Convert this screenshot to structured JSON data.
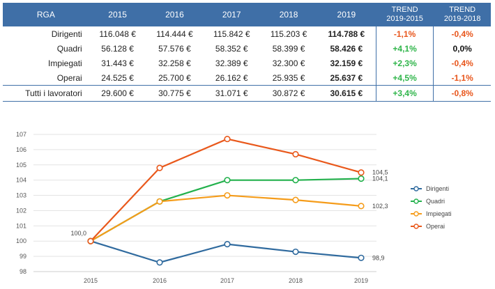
{
  "table": {
    "headers": [
      "RGA",
      "2015",
      "2016",
      "2017",
      "2018",
      "2019",
      "TREND\n2019-2015",
      "TREND\n2019-2018"
    ],
    "rows": [
      {
        "label": "Dirigenti",
        "values": [
          "116.048 €",
          "114.444 €",
          "115.842 €",
          "115.203 €",
          "114.788 €"
        ],
        "trend1": "-1,1%",
        "trend2": "-0,4%"
      },
      {
        "label": "Quadri",
        "values": [
          "56.128 €",
          "57.576 €",
          "58.352 €",
          "58.399 €",
          "58.426 €"
        ],
        "trend1": "+4,1%",
        "trend2": "0,0%"
      },
      {
        "label": "Impiegati",
        "values": [
          "31.443 €",
          "32.258 €",
          "32.389 €",
          "32.300 €",
          "32.159 €"
        ],
        "trend1": "+2,3%",
        "trend2": "-0,4%"
      },
      {
        "label": "Operai",
        "values": [
          "24.525 €",
          "25.700 €",
          "26.162 €",
          "25.935 €",
          "25.637 €"
        ],
        "trend1": "+4,5%",
        "trend2": "-1,1%"
      }
    ],
    "total": {
      "label": "Tutti i lavoratori",
      "values": [
        "29.600 €",
        "30.775 €",
        "31.071 €",
        "30.872 €",
        "30.615 €"
      ],
      "trend1": "+3,4%",
      "trend2": "-0,8%"
    }
  },
  "colors": {
    "header_bg": "#3f6fa7",
    "positive": "#2fb54a",
    "negative": "#e8561c"
  },
  "chart_data": {
    "type": "line",
    "x": [
      "2015",
      "2016",
      "2017",
      "2018",
      "2019"
    ],
    "ylim": [
      98,
      107
    ],
    "yticks": [
      "98",
      "99",
      "100",
      "101",
      "102",
      "103",
      "104",
      "105",
      "106",
      "107"
    ],
    "grid": true,
    "legend_position": "right",
    "series": [
      {
        "name": "Dirigenti",
        "color": "#2f6a9e",
        "values": [
          100.0,
          98.6,
          99.8,
          99.3,
          98.9
        ]
      },
      {
        "name": "Quadri",
        "color": "#22b14c",
        "values": [
          100.0,
          102.6,
          104.0,
          104.0,
          104.1
        ]
      },
      {
        "name": "Impiegati",
        "color": "#f59c1a",
        "values": [
          100.0,
          102.6,
          103.0,
          102.7,
          102.3
        ]
      },
      {
        "name": "Operai",
        "color": "#e9581b",
        "values": [
          100.0,
          104.8,
          106.7,
          105.7,
          104.5
        ]
      }
    ],
    "data_labels": [
      {
        "series": "Dirigenti",
        "index": 0,
        "text": "100,0"
      },
      {
        "series": "Operai",
        "index": 4,
        "text": "104,5"
      },
      {
        "series": "Quadri",
        "index": 4,
        "text": "104,1"
      },
      {
        "series": "Impiegati",
        "index": 4,
        "text": "102,3"
      },
      {
        "series": "Dirigenti",
        "index": 4,
        "text": "98,9"
      }
    ]
  }
}
